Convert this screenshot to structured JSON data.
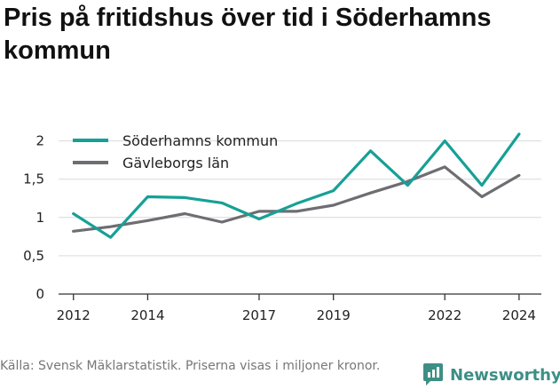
{
  "title": "Pris på fritidshus över tid i Söderhamns kommun",
  "source_note": "Källa: Svensk Mäklarstatistik. Priserna visas i miljoner kronor.",
  "brand": {
    "name": "Newsworthy",
    "icon": "newsworthy-logo-icon",
    "color": "#3d8f86"
  },
  "chart_data": {
    "type": "line",
    "title": "Pris på fritidshus över tid i Söderhamns kommun",
    "xlabel": "",
    "ylabel": "",
    "x": [
      2012,
      2013,
      2014,
      2015,
      2016,
      2017,
      2018,
      2019,
      2020,
      2021,
      2022,
      2023,
      2024
    ],
    "xticks": [
      2012,
      2014,
      2017,
      2019,
      2022,
      2024
    ],
    "xlim": [
      2011.6,
      2024.6
    ],
    "yticks": [
      0,
      0.5,
      1,
      1.5,
      2
    ],
    "ytick_labels": [
      "0",
      "0,5",
      "1",
      "1,5",
      "2"
    ],
    "ylim": [
      0,
      2.1
    ],
    "grid": true,
    "legend_position": "top-left",
    "series": [
      {
        "name": "Söderhamns kommun",
        "color": "#16a096",
        "values": [
          1.05,
          0.74,
          1.27,
          1.26,
          1.19,
          0.98,
          1.18,
          1.35,
          1.87,
          1.42,
          2.0,
          1.42,
          2.09
        ]
      },
      {
        "name": "Gävleborgs län",
        "color": "#6e6d72",
        "values": [
          0.82,
          0.88,
          0.96,
          1.05,
          0.94,
          1.08,
          1.08,
          1.16,
          1.32,
          1.47,
          1.66,
          1.27,
          1.55
        ]
      }
    ]
  }
}
